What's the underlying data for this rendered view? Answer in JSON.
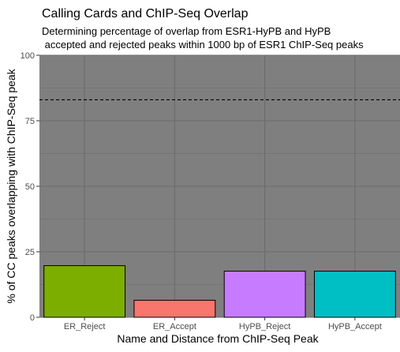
{
  "chart_data": {
    "type": "bar",
    "title": "Calling Cards and ChIP-Seq Overlap",
    "subtitle": [
      "Determining percentage of overlap from ESR1-HyPB and HyPB",
      " accepted and rejected peaks within 1000 bp of ESR1 ChIP-Seq peaks"
    ],
    "xlabel": "Name and Distance from ChIP-Seq Peak",
    "ylabel": "% of CC peaks overlapping with ChIP-Seq peak",
    "categories": [
      "ER_Reject",
      "ER_Accept",
      "HyPB_Reject",
      "HyPB_Accept"
    ],
    "values": [
      19.7,
      6.5,
      17.6,
      17.6
    ],
    "colors": [
      "#7cae00",
      "#f8766d",
      "#c77cff",
      "#00bfc4"
    ],
    "ylim": [
      0,
      100
    ],
    "yticks": [
      0,
      25,
      50,
      75,
      100
    ],
    "reference_line": 83,
    "panel_background": "#7f7f7f",
    "grid": true,
    "legend": "none"
  }
}
